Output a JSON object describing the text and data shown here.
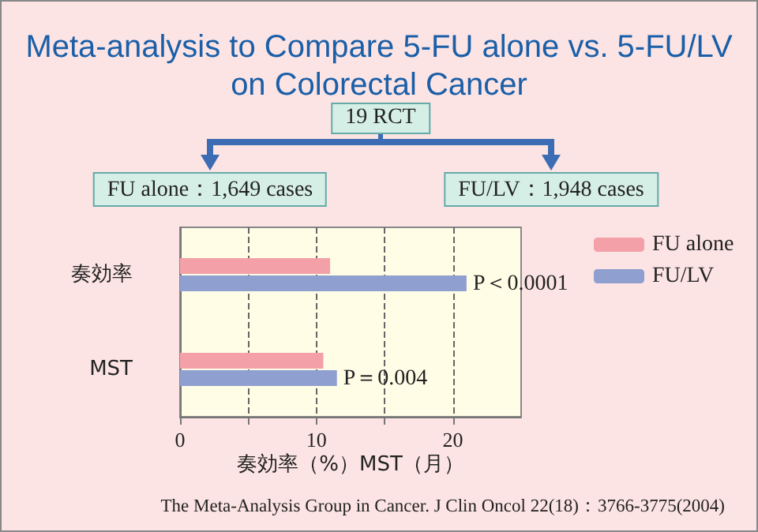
{
  "chart_data": {
    "type": "bar",
    "orientation": "horizontal",
    "title": "Meta-analysis to Compare 5-FU alone vs. 5-FU/LV\non Colorectal Cancer",
    "categories": [
      "奏効率",
      "MST"
    ],
    "series": [
      {
        "name": "FU alone",
        "color": "#f4a0a8",
        "values": [
          11,
          10.5
        ]
      },
      {
        "name": "FU/LV",
        "color": "#8f9fd0",
        "values": [
          21,
          11.5
        ]
      }
    ],
    "xlabel": "奏効率（%）MST（月）",
    "xlim": [
      0,
      25
    ],
    "xticks": [
      0,
      {
        "value": 5,
        "label": null
      },
      10,
      {
        "value": 15,
        "label": null
      },
      20
    ],
    "grid": "x",
    "legend": "right",
    "annotations": [
      {
        "text": "P＜0.0001",
        "x": 21,
        "y": "奏効率"
      },
      {
        "text": "P＝0.004",
        "x": 11.5,
        "y": "MST"
      },
      "19 RCT",
      "FU alone：1,649 cases",
      "FU/LV：1,948 cases",
      "The Meta-Analysis Group in Cancer. J Clin Oncol 22(18)：3766-3775(2004)"
    ]
  }
}
